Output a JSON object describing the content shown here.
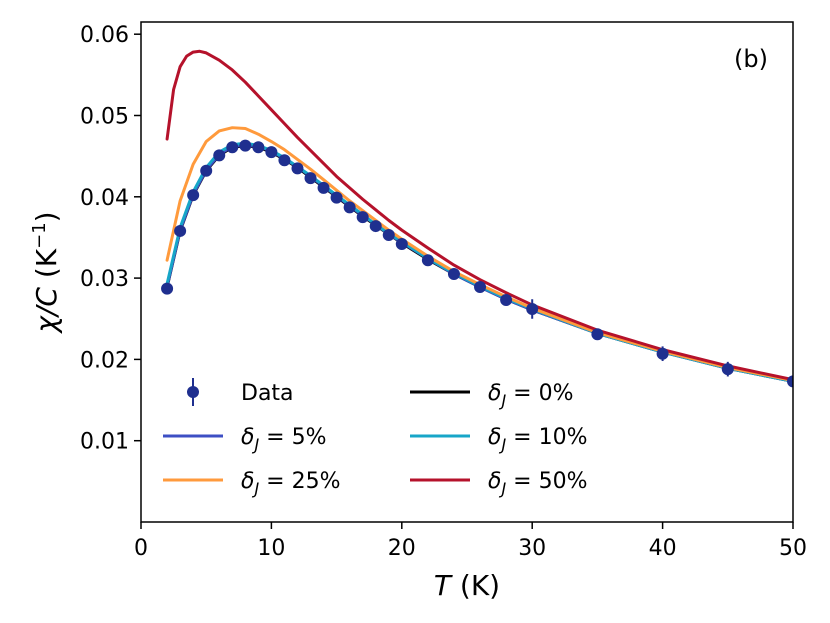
{
  "chart_data": {
    "type": "line",
    "panel_label": "(b)",
    "xlabel": {
      "italic": "T",
      "rest": " (K)"
    },
    "ylabel": {
      "italic": "χ/C",
      "rest": " (K",
      "sup": "−1",
      "close": ")"
    },
    "xlim": [
      0,
      50
    ],
    "ylim": [
      0.0,
      0.0615
    ],
    "xticks": [
      0,
      10,
      20,
      30,
      40,
      50
    ],
    "xtick_labels": [
      "0",
      "10",
      "20",
      "30",
      "40",
      "50"
    ],
    "yticks": [
      0.01,
      0.02,
      0.03,
      0.04,
      0.05,
      0.06
    ],
    "ytick_labels": [
      "0.01",
      "0.02",
      "0.03",
      "0.04",
      "0.05",
      "0.06"
    ],
    "grid": false,
    "legend_placement": "lower-left",
    "series": [
      {
        "name": "δJ = 0%",
        "legend": {
          "prefix": "δ",
          "sub": "J",
          "suffix": " = 0%"
        },
        "kind": "line",
        "color": "#000000",
        "x": [
          2,
          3,
          4,
          5,
          6,
          7,
          8,
          9,
          10,
          11,
          12,
          13,
          14,
          15,
          16,
          17,
          18,
          19,
          20,
          22,
          24,
          26,
          28,
          30,
          35,
          40,
          45,
          50
        ],
        "y": [
          0.0289,
          0.0358,
          0.0402,
          0.0432,
          0.0451,
          0.0461,
          0.0463,
          0.0461,
          0.0455,
          0.0446,
          0.0436,
          0.0424,
          0.0412,
          0.04,
          0.0388,
          0.0376,
          0.0365,
          0.0354,
          0.0343,
          0.0323,
          0.0305,
          0.0289,
          0.0274,
          0.0261,
          0.0232,
          0.0209,
          0.0189,
          0.0173
        ]
      },
      {
        "name": "δJ = 5%",
        "legend": {
          "prefix": "δ",
          "sub": "J",
          "suffix": " =  5%"
        },
        "kind": "line",
        "color": "#3d4fc4",
        "x": [
          2,
          3,
          4,
          5,
          6,
          7,
          8,
          9,
          10,
          11,
          12,
          13,
          14,
          15,
          16,
          17,
          18,
          19,
          20,
          22,
          24,
          26,
          28,
          30,
          35,
          40,
          45,
          50
        ],
        "y": [
          0.029,
          0.0359,
          0.0403,
          0.0433,
          0.0452,
          0.0462,
          0.0464,
          0.0462,
          0.0456,
          0.0447,
          0.0437,
          0.0425,
          0.0413,
          0.0401,
          0.0389,
          0.0377,
          0.0366,
          0.0354,
          0.0344,
          0.0324,
          0.0305,
          0.0289,
          0.0274,
          0.0261,
          0.0232,
          0.0209,
          0.0189,
          0.0173
        ]
      },
      {
        "name": "δJ = 10%",
        "legend": {
          "prefix": "δ",
          "sub": "J",
          "suffix": " = 10%"
        },
        "kind": "line",
        "color": "#17a6c8",
        "x": [
          2,
          3,
          4,
          5,
          6,
          7,
          8,
          9,
          10,
          11,
          12,
          13,
          14,
          15,
          16,
          17,
          18,
          19,
          20,
          22,
          24,
          26,
          28,
          30,
          35,
          40,
          45,
          50
        ],
        "y": [
          0.0293,
          0.0362,
          0.0406,
          0.0436,
          0.0455,
          0.0464,
          0.0466,
          0.0463,
          0.0457,
          0.0448,
          0.0437,
          0.0426,
          0.0414,
          0.0402,
          0.039,
          0.0378,
          0.0366,
          0.0355,
          0.0345,
          0.0324,
          0.0306,
          0.029,
          0.0275,
          0.0262,
          0.0232,
          0.0209,
          0.0189,
          0.0173
        ]
      },
      {
        "name": "δJ = 25%",
        "legend": {
          "prefix": "δ",
          "sub": "J",
          "suffix": " = 25%"
        },
        "kind": "line",
        "color": "#ff9a3c",
        "x": [
          2,
          3,
          4,
          5,
          6,
          7,
          8,
          9,
          10,
          11,
          12,
          13,
          14,
          15,
          16,
          17,
          18,
          19,
          20,
          22,
          24,
          26,
          28,
          30,
          35,
          40,
          45,
          50
        ],
        "y": [
          0.0322,
          0.0395,
          0.044,
          0.0468,
          0.0481,
          0.0485,
          0.0484,
          0.0477,
          0.0468,
          0.0458,
          0.0446,
          0.0434,
          0.0421,
          0.0408,
          0.0395,
          0.0383,
          0.0371,
          0.0359,
          0.0348,
          0.0327,
          0.0308,
          0.0292,
          0.0277,
          0.0263,
          0.0233,
          0.021,
          0.019,
          0.0174
        ]
      },
      {
        "name": "δJ = 50%",
        "legend": {
          "prefix": "δ",
          "sub": "J",
          "suffix": " = 50%"
        },
        "kind": "line",
        "color": "#b5122b",
        "x": [
          2,
          2.5,
          3,
          3.5,
          4,
          4.5,
          5,
          6,
          7,
          8,
          9,
          10,
          11,
          12,
          13,
          14,
          15,
          16,
          17,
          18,
          19,
          20,
          22,
          24,
          26,
          28,
          30,
          35,
          40,
          45,
          50
        ],
        "y": [
          0.0471,
          0.0532,
          0.056,
          0.0573,
          0.0578,
          0.0579,
          0.0577,
          0.0568,
          0.0556,
          0.0541,
          0.0524,
          0.0507,
          0.049,
          0.0473,
          0.0457,
          0.0441,
          0.0425,
          0.0411,
          0.0397,
          0.0384,
          0.0371,
          0.0359,
          0.0337,
          0.0316,
          0.0298,
          0.0282,
          0.0267,
          0.0236,
          0.0212,
          0.0192,
          0.0175
        ]
      },
      {
        "name": "Data",
        "legend": {
          "prefix": "Data",
          "sub": "",
          "suffix": ""
        },
        "kind": "scatter",
        "color": "#1f2f8f",
        "x": [
          2,
          3,
          4,
          5,
          6,
          7,
          8,
          9,
          10,
          11,
          12,
          13,
          14,
          15,
          16,
          17,
          18,
          19,
          20,
          22,
          24,
          26,
          28,
          30,
          35,
          40,
          45,
          50
        ],
        "y": [
          0.0287,
          0.0358,
          0.0402,
          0.0432,
          0.0451,
          0.0461,
          0.0463,
          0.0461,
          0.0455,
          0.0445,
          0.0435,
          0.0423,
          0.0411,
          0.0399,
          0.0387,
          0.0375,
          0.0364,
          0.0353,
          0.0342,
          0.0322,
          0.0305,
          0.0289,
          0.0273,
          0.0262,
          0.0231,
          0.0207,
          0.0188,
          0.0173
        ],
        "yerr": [
          0.0003,
          0.0003,
          0.0003,
          0.0003,
          0.0003,
          0.0003,
          0.0003,
          0.0003,
          0.0003,
          0.0003,
          0.0003,
          0.0003,
          0.0003,
          0.0003,
          0.0003,
          0.0003,
          0.0003,
          0.0003,
          0.0003,
          0.0003,
          0.0003,
          0.0003,
          0.0003,
          0.0012,
          0.0004,
          0.0009,
          0.0009,
          0.0007
        ]
      }
    ],
    "legend_order": [
      [
        "Data",
        "δJ = 0%"
      ],
      [
        "δJ = 5%",
        "δJ = 10%"
      ],
      [
        "δJ = 25%",
        "δJ = 50%"
      ]
    ]
  }
}
